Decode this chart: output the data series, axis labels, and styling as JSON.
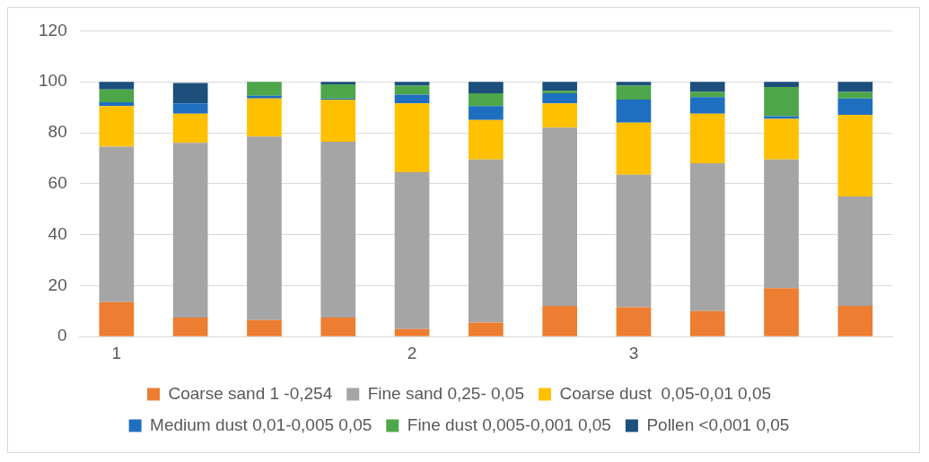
{
  "chart_data": {
    "type": "bar",
    "stacked": true,
    "categories": [
      "1",
      null,
      null,
      null,
      "2",
      null,
      null,
      "3",
      null,
      null,
      null
    ],
    "series": [
      {
        "name": "Coarse sand 1 -0,254",
        "color": "#ed7d31",
        "values": [
          13.5,
          7.5,
          6.5,
          7.5,
          3,
          5.5,
          12,
          11.5,
          10,
          19,
          12
        ]
      },
      {
        "name": "Fine sand 0,25- 0,05",
        "color": "#a5a5a5",
        "values": [
          61,
          68.5,
          72,
          69,
          61.5,
          64,
          70,
          52,
          58,
          50.5,
          43
        ]
      },
      {
        "name": "Coarse dust  0,05-0,01 0,05",
        "color": "#ffc000",
        "values": [
          16,
          11.5,
          15,
          16.5,
          27,
          15.5,
          9.5,
          20.5,
          19.5,
          16,
          32
        ]
      },
      {
        "name": "Medium dust 0,01-0,005 0,05",
        "color": "#1f6fc0",
        "values": [
          1.5,
          4,
          1,
          0.5,
          3.5,
          5.5,
          4,
          9,
          6.5,
          1,
          6.5
        ]
      },
      {
        "name": "Fine dust 0,005-0,001 0,05",
        "color": "#4ea64a",
        "values": [
          5,
          0,
          5.5,
          5.5,
          3.5,
          5,
          1,
          5.5,
          2,
          11.5,
          2.5
        ]
      },
      {
        "name": "Pollen <0,001 0,05",
        "color": "#1d4f7c",
        "values": [
          3,
          8,
          0,
          1,
          1.5,
          4.5,
          3.5,
          1.5,
          4,
          2,
          4
        ]
      }
    ],
    "ylim": [
      0,
      120
    ],
    "yticks": [
      0,
      20,
      40,
      60,
      80,
      100,
      120
    ],
    "grid": "y",
    "legend": "bottom"
  }
}
